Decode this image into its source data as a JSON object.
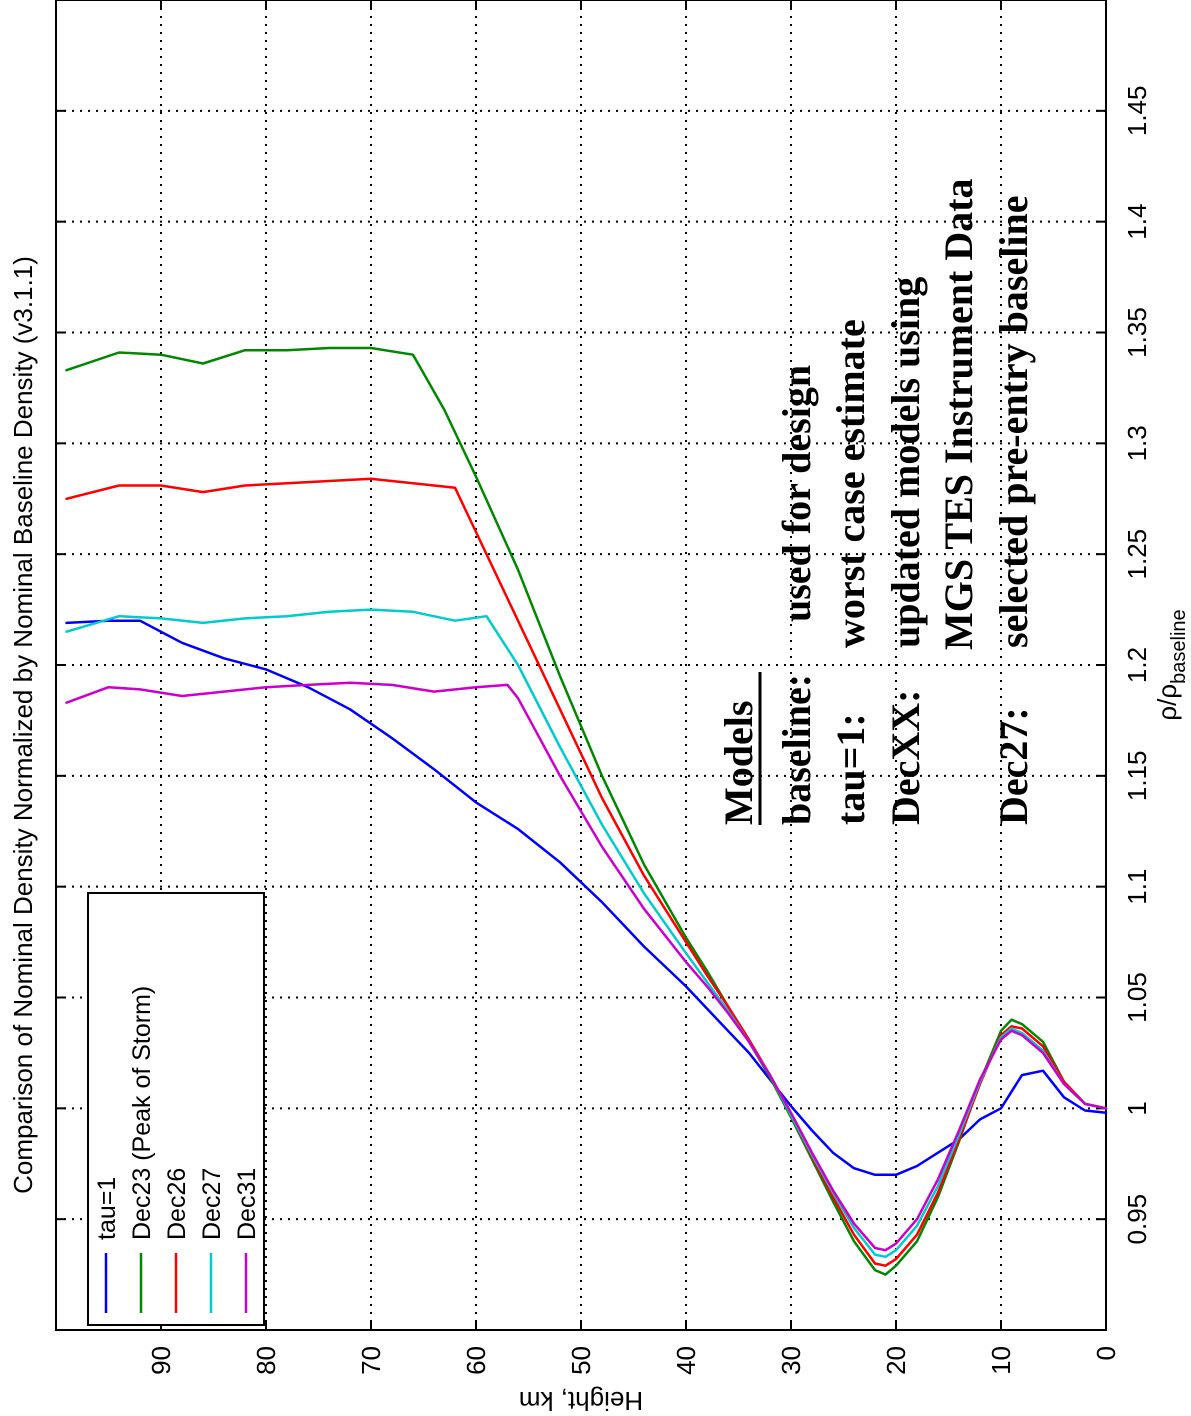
{
  "chart_data": {
    "type": "line",
    "title": "Comparison of Nominal Density Normalized by Nominal Baseline Density (v3.1.1)",
    "xlabel": "Height, km",
    "ylabel_main": "ρ/ρ",
    "ylabel_sub": "baseline",
    "x_ticks": [
      0,
      10,
      20,
      30,
      40,
      50,
      60,
      70,
      80,
      90
    ],
    "x_tick_labels": [
      "0",
      "10",
      "20",
      "30",
      "40",
      "50",
      "60",
      "70",
      "80",
      "90"
    ],
    "y_ticks": [
      0.95,
      1.0,
      1.05,
      1.1,
      1.15,
      1.2,
      1.25,
      1.3,
      1.35,
      1.4,
      1.45
    ],
    "y_tick_labels": [
      "0.95",
      "1",
      "1.05",
      "1.1",
      "1.15",
      "1.2",
      "1.25",
      "1.3",
      "1.35",
      "1.4",
      "1.45"
    ],
    "xlim": [
      0,
      100
    ],
    "ylim": [
      0.9,
      1.5
    ],
    "grid": true,
    "legend_position": "bottom-left",
    "series": [
      {
        "name": "tau=1",
        "color": "#0000ff",
        "x": [
          0,
          2,
          4,
          6,
          8,
          10,
          12,
          14,
          16,
          18,
          20,
          22,
          24,
          26,
          28,
          30,
          32,
          34,
          36,
          38,
          40,
          44,
          48,
          52,
          56,
          60,
          64,
          68,
          72,
          76,
          80,
          84,
          88,
          92,
          95,
          99
        ],
        "y": [
          0.998,
          0.999,
          1.005,
          1.017,
          1.015,
          1.0,
          0.995,
          0.986,
          0.98,
          0.974,
          0.97,
          0.97,
          0.973,
          0.98,
          0.99,
          1.001,
          1.013,
          1.025,
          1.035,
          1.045,
          1.055,
          1.073,
          1.093,
          1.111,
          1.126,
          1.138,
          1.153,
          1.167,
          1.18,
          1.19,
          1.198,
          1.203,
          1.21,
          1.22,
          1.22,
          1.219
        ]
      },
      {
        "name": "Dec23 (Peak of Storm)",
        "color": "#008800",
        "x": [
          0,
          2,
          4,
          6,
          8,
          9,
          10,
          12,
          14,
          16,
          18,
          20,
          21,
          22,
          24,
          26,
          28,
          30,
          32,
          34,
          36,
          38,
          40,
          44,
          48,
          52,
          56,
          60,
          63,
          66,
          70,
          74,
          78,
          82,
          86,
          90,
          94,
          99
        ],
        "y": [
          1.0,
          1.002,
          1.012,
          1.03,
          1.038,
          1.04,
          1.035,
          1.012,
          0.985,
          0.96,
          0.94,
          0.929,
          0.925,
          0.927,
          0.94,
          0.958,
          0.977,
          0.996,
          1.014,
          1.03,
          1.046,
          1.062,
          1.077,
          1.11,
          1.15,
          1.195,
          1.243,
          1.285,
          1.315,
          1.34,
          1.343,
          1.343,
          1.342,
          1.342,
          1.336,
          1.34,
          1.341,
          1.333
        ]
      },
      {
        "name": "Dec26",
        "color": "#ff0000",
        "x": [
          0,
          2,
          4,
          6,
          8,
          9,
          10,
          12,
          14,
          16,
          18,
          20,
          21,
          22,
          24,
          26,
          28,
          30,
          32,
          34,
          36,
          38,
          40,
          44,
          48,
          52,
          56,
          60,
          62,
          66,
          70,
          74,
          78,
          82,
          86,
          90,
          94,
          99
        ],
        "y": [
          1.0,
          1.002,
          1.012,
          1.028,
          1.036,
          1.037,
          1.033,
          1.011,
          0.986,
          0.962,
          0.943,
          0.932,
          0.929,
          0.93,
          0.943,
          0.96,
          0.978,
          0.997,
          1.015,
          1.031,
          1.046,
          1.06,
          1.075,
          1.105,
          1.14,
          1.18,
          1.22,
          1.26,
          1.28,
          1.282,
          1.284,
          1.283,
          1.282,
          1.281,
          1.278,
          1.281,
          1.281,
          1.275
        ]
      },
      {
        "name": "Dec27",
        "color": "#00cccc",
        "x": [
          0,
          2,
          4,
          6,
          8,
          9,
          10,
          12,
          14,
          16,
          18,
          20,
          21,
          22,
          24,
          26,
          28,
          30,
          32,
          34,
          36,
          38,
          40,
          44,
          48,
          52,
          56,
          59,
          62,
          66,
          70,
          74,
          78,
          82,
          86,
          90,
          94,
          99
        ],
        "y": [
          1.0,
          1.002,
          1.011,
          1.026,
          1.034,
          1.036,
          1.032,
          1.012,
          0.988,
          0.965,
          0.947,
          0.936,
          0.933,
          0.934,
          0.946,
          0.962,
          0.979,
          0.997,
          1.015,
          1.03,
          1.044,
          1.057,
          1.07,
          1.097,
          1.128,
          1.163,
          1.2,
          1.222,
          1.22,
          1.224,
          1.225,
          1.224,
          1.222,
          1.221,
          1.219,
          1.221,
          1.222,
          1.215
        ]
      },
      {
        "name": "Dec31",
        "color": "#cc00cc",
        "x": [
          0,
          2,
          4,
          6,
          8,
          9,
          10,
          12,
          14,
          16,
          18,
          20,
          21,
          22,
          24,
          26,
          28,
          30,
          32,
          34,
          36,
          38,
          40,
          44,
          48,
          52,
          56,
          57,
          60,
          64,
          68,
          72,
          76,
          80,
          84,
          88,
          92,
          95,
          99
        ],
        "y": [
          1.0,
          1.002,
          1.011,
          1.025,
          1.033,
          1.035,
          1.031,
          1.013,
          0.99,
          0.968,
          0.95,
          0.939,
          0.936,
          0.937,
          0.948,
          0.963,
          0.98,
          0.998,
          1.015,
          1.03,
          1.043,
          1.055,
          1.066,
          1.09,
          1.118,
          1.15,
          1.185,
          1.191,
          1.19,
          1.188,
          1.191,
          1.192,
          1.191,
          1.19,
          1.188,
          1.186,
          1.189,
          1.19,
          1.183
        ]
      }
    ],
    "annotations": {
      "heading": "Models",
      "rows": [
        {
          "key": "baseline:",
          "text": "used for design"
        },
        {
          "key": "tau=1:",
          "text": "worst case estimate"
        },
        {
          "key": "DecXX:",
          "text": "updated models using"
        },
        {
          "key": "",
          "text": "MGS TES Instrument Data"
        },
        {
          "key": "Dec27:",
          "text": "selected pre-entry baseline"
        }
      ]
    }
  }
}
